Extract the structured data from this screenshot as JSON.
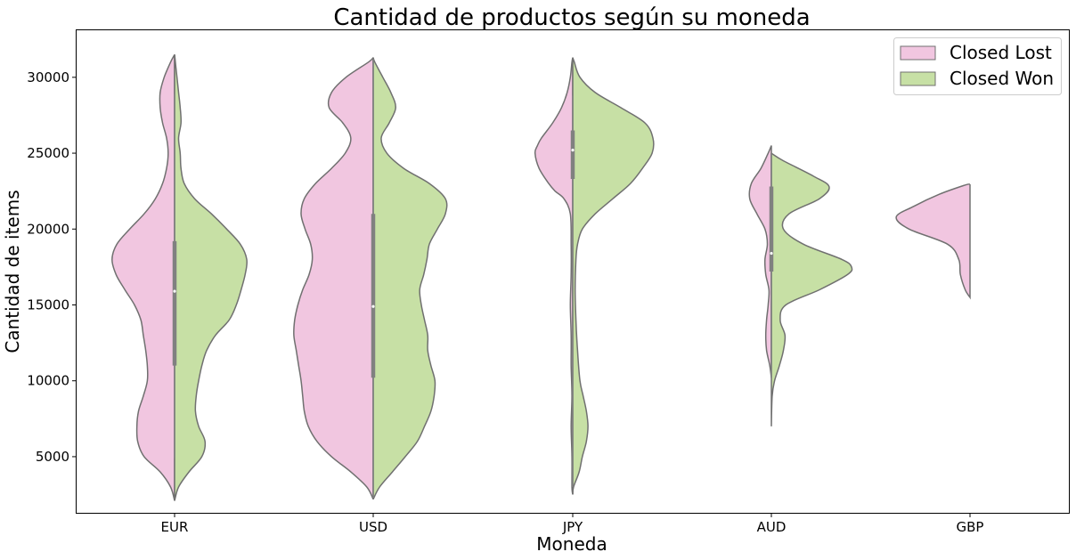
{
  "chart_data": {
    "type": "violin",
    "split": true,
    "title": "Cantidad de productos según su moneda",
    "xlabel": "Moneda",
    "ylabel": "Cantidad de items",
    "categories": [
      "EUR",
      "USD",
      "JPY",
      "AUD",
      "GBP"
    ],
    "ylim": [
      1300,
      33100
    ],
    "yticks": [
      5000,
      10000,
      15000,
      20000,
      25000,
      30000
    ],
    "legend_position": "top-right",
    "series": [
      {
        "name": "Closed Lost",
        "color": "#f1c6e0",
        "side": "left"
      },
      {
        "name": "Closed Won",
        "color": "#c7e0a5",
        "side": "right"
      }
    ],
    "outline_color": "#707070",
    "inner_box_color": "#808080",
    "distributions": [
      {
        "category": "EUR",
        "quartile_box": [
          11000,
          19200
        ],
        "whiskers": [
          4900,
          28900
        ],
        "median": 15900,
        "lost": [
          [
            2100,
            0
          ],
          [
            3000,
            0.05
          ],
          [
            4000,
            0.18
          ],
          [
            5000,
            0.38
          ],
          [
            6000,
            0.46
          ],
          [
            7000,
            0.47
          ],
          [
            8000,
            0.45
          ],
          [
            9000,
            0.39
          ],
          [
            10000,
            0.34
          ],
          [
            11000,
            0.34
          ],
          [
            12000,
            0.36
          ],
          [
            13000,
            0.39
          ],
          [
            14000,
            0.42
          ],
          [
            15000,
            0.5
          ],
          [
            16000,
            0.62
          ],
          [
            17000,
            0.73
          ],
          [
            18000,
            0.78
          ],
          [
            19000,
            0.72
          ],
          [
            20000,
            0.56
          ],
          [
            21000,
            0.38
          ],
          [
            22000,
            0.24
          ],
          [
            23000,
            0.15
          ],
          [
            24000,
            0.1
          ],
          [
            25000,
            0.08
          ],
          [
            26000,
            0.1
          ],
          [
            27000,
            0.15
          ],
          [
            28000,
            0.18
          ],
          [
            29000,
            0.18
          ],
          [
            30000,
            0.13
          ],
          [
            31000,
            0.05
          ],
          [
            31500,
            0
          ]
        ],
        "won": [
          [
            2100,
            0
          ],
          [
            3000,
            0.05
          ],
          [
            4000,
            0.18
          ],
          [
            5000,
            0.34
          ],
          [
            6000,
            0.38
          ],
          [
            7000,
            0.3
          ],
          [
            8000,
            0.26
          ],
          [
            9000,
            0.27
          ],
          [
            10000,
            0.3
          ],
          [
            11000,
            0.34
          ],
          [
            12000,
            0.4
          ],
          [
            13000,
            0.51
          ],
          [
            14000,
            0.68
          ],
          [
            15000,
            0.77
          ],
          [
            16000,
            0.83
          ],
          [
            17000,
            0.88
          ],
          [
            18000,
            0.9
          ],
          [
            19000,
            0.82
          ],
          [
            20000,
            0.65
          ],
          [
            21000,
            0.46
          ],
          [
            22000,
            0.25
          ],
          [
            23000,
            0.12
          ],
          [
            24000,
            0.08
          ],
          [
            25000,
            0.07
          ],
          [
            26000,
            0.05
          ],
          [
            27000,
            0.08
          ],
          [
            28000,
            0.07
          ],
          [
            29000,
            0.05
          ],
          [
            30000,
            0.03
          ],
          [
            31000,
            0.01
          ],
          [
            31500,
            0
          ]
        ]
      },
      {
        "category": "USD",
        "quartile_box": [
          10200,
          21000
        ],
        "whiskers": [
          2300,
          31200
        ],
        "median": 14900,
        "lost": [
          [
            2200,
            0
          ],
          [
            3000,
            0.08
          ],
          [
            4000,
            0.28
          ],
          [
            5000,
            0.52
          ],
          [
            6000,
            0.7
          ],
          [
            7000,
            0.81
          ],
          [
            8000,
            0.86
          ],
          [
            9000,
            0.88
          ],
          [
            10000,
            0.9
          ],
          [
            11000,
            0.93
          ],
          [
            12000,
            0.96
          ],
          [
            13000,
            0.99
          ],
          [
            14000,
            0.98
          ],
          [
            15000,
            0.94
          ],
          [
            16000,
            0.88
          ],
          [
            17000,
            0.8
          ],
          [
            18000,
            0.76
          ],
          [
            19000,
            0.78
          ],
          [
            20000,
            0.85
          ],
          [
            21000,
            0.9
          ],
          [
            22000,
            0.86
          ],
          [
            23000,
            0.72
          ],
          [
            24000,
            0.52
          ],
          [
            25000,
            0.35
          ],
          [
            26000,
            0.28
          ],
          [
            27000,
            0.38
          ],
          [
            28000,
            0.55
          ],
          [
            29000,
            0.52
          ],
          [
            30000,
            0.34
          ],
          [
            31000,
            0.06
          ],
          [
            31300,
            0
          ]
        ],
        "won": [
          [
            2200,
            0
          ],
          [
            3000,
            0.08
          ],
          [
            4000,
            0.24
          ],
          [
            5000,
            0.4
          ],
          [
            6000,
            0.55
          ],
          [
            7000,
            0.64
          ],
          [
            8000,
            0.72
          ],
          [
            9000,
            0.76
          ],
          [
            10000,
            0.77
          ],
          [
            11000,
            0.72
          ],
          [
            12000,
            0.68
          ],
          [
            13000,
            0.68
          ],
          [
            14000,
            0.64
          ],
          [
            15000,
            0.6
          ],
          [
            16000,
            0.58
          ],
          [
            17000,
            0.63
          ],
          [
            18000,
            0.67
          ],
          [
            19000,
            0.7
          ],
          [
            20000,
            0.8
          ],
          [
            21000,
            0.9
          ],
          [
            22000,
            0.9
          ],
          [
            23000,
            0.7
          ],
          [
            24000,
            0.38
          ],
          [
            25000,
            0.17
          ],
          [
            26000,
            0.1
          ],
          [
            27000,
            0.2
          ],
          [
            28000,
            0.28
          ],
          [
            29000,
            0.22
          ],
          [
            30000,
            0.12
          ],
          [
            31000,
            0.02
          ],
          [
            31300,
            0
          ]
        ]
      },
      {
        "category": "JPY",
        "quartile_box": [
          23300,
          26500
        ],
        "whiskers": [
          3000,
          28800
        ],
        "median": 25200,
        "lost": [
          [
            2500,
            0
          ],
          [
            3000,
            0.01
          ],
          [
            5000,
            0.01
          ],
          [
            7000,
            0.02
          ],
          [
            9000,
            0.01
          ],
          [
            11000,
            0.02
          ],
          [
            13000,
            0.02
          ],
          [
            15000,
            0.03
          ],
          [
            17000,
            0.02
          ],
          [
            19000,
            0.02
          ],
          [
            21000,
            0.03
          ],
          [
            22000,
            0.11
          ],
          [
            22500,
            0.22
          ],
          [
            23000,
            0.3
          ],
          [
            24000,
            0.42
          ],
          [
            25000,
            0.47
          ],
          [
            25500,
            0.44
          ],
          [
            26000,
            0.39
          ],
          [
            27000,
            0.25
          ],
          [
            28000,
            0.14
          ],
          [
            29000,
            0.07
          ],
          [
            30000,
            0.03
          ],
          [
            31000,
            0.01
          ],
          [
            31300,
            0
          ]
        ],
        "won": [
          [
            2500,
            0
          ],
          [
            3000,
            0.01
          ],
          [
            4000,
            0.08
          ],
          [
            5000,
            0.12
          ],
          [
            6000,
            0.17
          ],
          [
            7000,
            0.19
          ],
          [
            8000,
            0.17
          ],
          [
            9000,
            0.13
          ],
          [
            10000,
            0.09
          ],
          [
            12000,
            0.06
          ],
          [
            14000,
            0.04
          ],
          [
            16000,
            0.03
          ],
          [
            18000,
            0.04
          ],
          [
            19000,
            0.06
          ],
          [
            20000,
            0.12
          ],
          [
            21000,
            0.28
          ],
          [
            22000,
            0.5
          ],
          [
            23000,
            0.72
          ],
          [
            24000,
            0.87
          ],
          [
            25000,
            0.99
          ],
          [
            26000,
            1.0
          ],
          [
            27000,
            0.9
          ],
          [
            28000,
            0.6
          ],
          [
            29000,
            0.28
          ],
          [
            30000,
            0.09
          ],
          [
            31000,
            0.02
          ],
          [
            31300,
            0
          ]
        ]
      },
      {
        "category": "AUD",
        "quartile_box": [
          17200,
          22800
        ],
        "whiskers": [
          10200,
          25000
        ],
        "median": 18400,
        "lost": [
          [
            10200,
            0
          ],
          [
            11000,
            0.02
          ],
          [
            12000,
            0.06
          ],
          [
            13000,
            0.07
          ],
          [
            14000,
            0.06
          ],
          [
            15000,
            0.04
          ],
          [
            16000,
            0.03
          ],
          [
            17000,
            0.07
          ],
          [
            18000,
            0.08
          ],
          [
            19000,
            0.05
          ],
          [
            20000,
            0.08
          ],
          [
            21000,
            0.18
          ],
          [
            22000,
            0.27
          ],
          [
            23000,
            0.25
          ],
          [
            24000,
            0.13
          ],
          [
            25000,
            0.04
          ],
          [
            25500,
            0
          ]
        ],
        "won": [
          [
            7000,
            0
          ],
          [
            9000,
            0.01
          ],
          [
            10000,
            0.04
          ],
          [
            11000,
            0.1
          ],
          [
            12000,
            0.15
          ],
          [
            13000,
            0.17
          ],
          [
            14000,
            0.11
          ],
          [
            15000,
            0.18
          ],
          [
            16000,
            0.6
          ],
          [
            17000,
            0.95
          ],
          [
            17500,
            1.0
          ],
          [
            18000,
            0.88
          ],
          [
            19000,
            0.4
          ],
          [
            20000,
            0.15
          ],
          [
            21000,
            0.22
          ],
          [
            22000,
            0.6
          ],
          [
            22800,
            0.72
          ],
          [
            23500,
            0.52
          ],
          [
            24500,
            0.15
          ],
          [
            25000,
            0
          ]
        ]
      },
      {
        "category": "GBP",
        "quartile_box": null,
        "whiskers": null,
        "median": null,
        "lost": [
          [
            15500,
            0
          ],
          [
            16000,
            0.06
          ],
          [
            17000,
            0.12
          ],
          [
            18000,
            0.14
          ],
          [
            19000,
            0.28
          ],
          [
            20000,
            0.76
          ],
          [
            20800,
            0.92
          ],
          [
            21500,
            0.7
          ],
          [
            22300,
            0.38
          ],
          [
            22900,
            0.06
          ],
          [
            22950,
            0
          ]
        ],
        "won": []
      }
    ]
  }
}
